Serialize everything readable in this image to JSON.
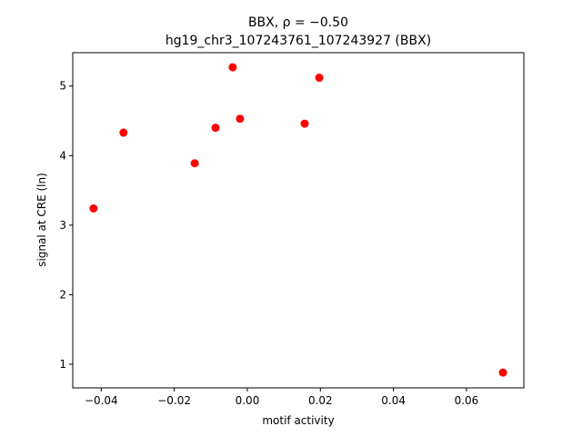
{
  "chart_data": {
    "type": "scatter",
    "title": "BBX, ρ = −0.50",
    "subtitle": "hg19_chr3_107243761_107243927 (BBX)",
    "x_label": "motif activity",
    "y_label": "signal at CRE (ln)",
    "color": "#ff0000",
    "x": [
      -0.0421,
      -0.0339,
      -0.0144,
      -0.0087,
      -0.004,
      -0.002,
      0.0157,
      0.0197,
      0.07
    ],
    "values": [
      3.24,
      4.33,
      3.89,
      4.4,
      5.27,
      4.53,
      4.46,
      5.12,
      0.88
    ],
    "xlim": [
      -0.0478,
      0.0757
    ],
    "ylim": [
      0.66,
      5.48
    ],
    "xticks": [
      {
        "value": -0.04,
        "label": "−0.04"
      },
      {
        "value": -0.02,
        "label": "−0.02"
      },
      {
        "value": 0,
        "label": "0.00"
      },
      0.02,
      0.04,
      0.06
    ],
    "yticks": [
      1,
      2,
      3,
      4,
      5
    ]
  }
}
